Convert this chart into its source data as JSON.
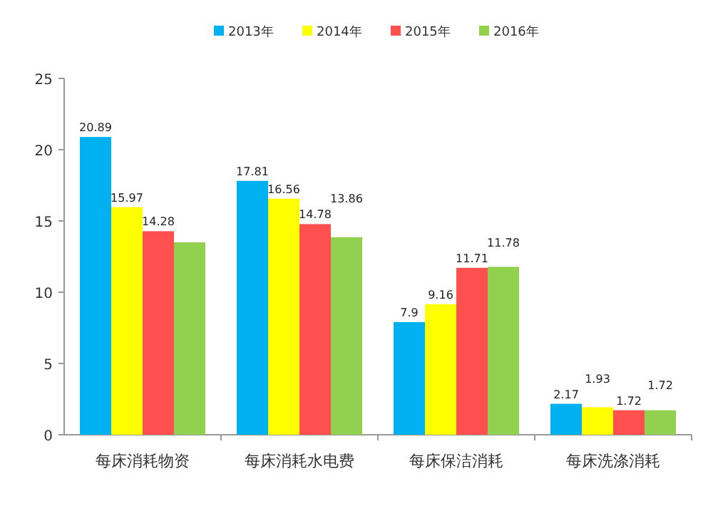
{
  "chart_data": {
    "type": "bar",
    "categories": [
      "每床消耗物资",
      "每床消耗水电费",
      "每床保洁消耗",
      "每床洗涤消耗"
    ],
    "series": [
      {
        "name": "2013年",
        "color": "#00b0f0",
        "values": [
          20.89,
          17.81,
          7.9,
          2.17
        ],
        "value_labels": [
          "20.89",
          "17.81",
          "7.9",
          "2.17"
        ]
      },
      {
        "name": "2014年",
        "color": "#ffff00",
        "values": [
          15.97,
          16.56,
          9.16,
          1.93
        ],
        "value_labels": [
          "15.97",
          "16.56",
          "9.16",
          "1.93"
        ]
      },
      {
        "name": "2015年",
        "color": "#ff5050",
        "values": [
          14.28,
          14.78,
          11.71,
          1.72
        ],
        "value_labels": [
          "14.28",
          "14.78",
          "11.71",
          "1.72"
        ]
      },
      {
        "name": "2016年",
        "color": "#92d050",
        "values": [
          13.5,
          13.86,
          11.78,
          1.72
        ],
        "value_labels": [
          null,
          "13.86",
          "11.78",
          "1.72"
        ]
      }
    ],
    "ylim": [
      0,
      25
    ],
    "yticks": [
      0,
      5,
      10,
      15,
      20,
      25
    ],
    "legend": "top",
    "grid": false
  }
}
